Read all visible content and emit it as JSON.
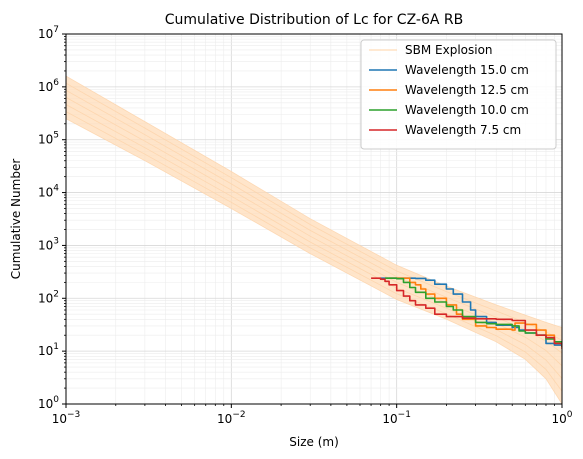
{
  "chart_data": {
    "type": "line",
    "title": "Cumulative Distribution of Lc for CZ-6A RB",
    "xlabel": "Size (m)",
    "ylabel": "Cumulative Number",
    "xscale": "log",
    "yscale": "log",
    "xlim": [
      0.001,
      1
    ],
    "ylim": [
      1,
      10000000
    ],
    "grid": true,
    "legend_position": "top-right",
    "x_tick_labels": [
      {
        "base": "10",
        "exp": "−3",
        "value": 0.001
      },
      {
        "base": "10",
        "exp": "−2",
        "value": 0.01
      },
      {
        "base": "10",
        "exp": "−1",
        "value": 0.1
      },
      {
        "base": "10",
        "exp": "0",
        "value": 1
      }
    ],
    "y_tick_labels": [
      {
        "base": "10",
        "exp": "0",
        "value": 1
      },
      {
        "base": "10",
        "exp": "1",
        "value": 10
      },
      {
        "base": "10",
        "exp": "2",
        "value": 100
      },
      {
        "base": "10",
        "exp": "3",
        "value": 1000
      },
      {
        "base": "10",
        "exp": "4",
        "value": 10000
      },
      {
        "base": "10",
        "exp": "5",
        "value": 100000
      },
      {
        "base": "10",
        "exp": "6",
        "value": 1000000
      },
      {
        "base": "10",
        "exp": "7",
        "value": 10000000
      }
    ],
    "band": {
      "name": "SBM Explosion",
      "color": "#ffdcb8",
      "x": [
        0.001,
        0.003,
        0.01,
        0.03,
        0.1,
        0.2,
        0.4,
        0.6,
        0.8,
        1.0
      ],
      "upper": [
        1600000,
        220000,
        25000,
        3200,
        420,
        170,
        75,
        48,
        35,
        28
      ],
      "lower": [
        250000,
        40000,
        5000,
        700,
        95,
        40,
        15,
        7,
        3,
        1
      ]
    },
    "series": [
      {
        "name": "Wavelength 15.0 cm",
        "color": "#1f77b4",
        "x": [
          0.08,
          0.11,
          0.13,
          0.15,
          0.17,
          0.2,
          0.22,
          0.25,
          0.28,
          0.3,
          0.35,
          0.4,
          0.5,
          0.55,
          0.6,
          0.7,
          0.8,
          0.9,
          1.0
        ],
        "y": [
          240,
          240,
          238,
          220,
          185,
          150,
          120,
          85,
          60,
          45,
          35,
          31,
          28,
          25,
          22,
          20,
          14,
          13,
          12
        ]
      },
      {
        "name": "Wavelength 12.5 cm",
        "color": "#ff7f0e",
        "x": [
          0.09,
          0.11,
          0.12,
          0.13,
          0.14,
          0.15,
          0.17,
          0.2,
          0.23,
          0.25,
          0.3,
          0.35,
          0.4,
          0.5,
          0.52,
          0.6,
          0.7,
          0.8,
          0.9,
          1.0
        ],
        "y": [
          240,
          240,
          200,
          180,
          150,
          120,
          100,
          75,
          50,
          40,
          30,
          28,
          26,
          25,
          34,
          32,
          25,
          20,
          15,
          12
        ]
      },
      {
        "name": "Wavelength 10.0 cm",
        "color": "#2ca02c",
        "x": [
          0.085,
          0.1,
          0.11,
          0.12,
          0.13,
          0.15,
          0.17,
          0.2,
          0.22,
          0.25,
          0.3,
          0.35,
          0.4,
          0.5,
          0.55,
          0.6,
          0.7,
          0.8,
          0.9,
          1.0
        ],
        "y": [
          240,
          235,
          200,
          160,
          130,
          100,
          85,
          70,
          60,
          45,
          35,
          33,
          32,
          30,
          24,
          22,
          20,
          17,
          15,
          12
        ]
      },
      {
        "name": "Wavelength 7.5 cm",
        "color": "#d62728",
        "x": [
          0.07,
          0.08,
          0.085,
          0.09,
          0.1,
          0.11,
          0.12,
          0.13,
          0.15,
          0.17,
          0.2,
          0.25,
          0.3,
          0.4,
          0.5,
          0.6,
          0.7,
          0.8,
          0.9,
          1.0
        ],
        "y": [
          240,
          230,
          210,
          180,
          140,
          110,
          90,
          75,
          65,
          50,
          45,
          42,
          41,
          40,
          38,
          25,
          20,
          18,
          14,
          11
        ]
      }
    ]
  }
}
